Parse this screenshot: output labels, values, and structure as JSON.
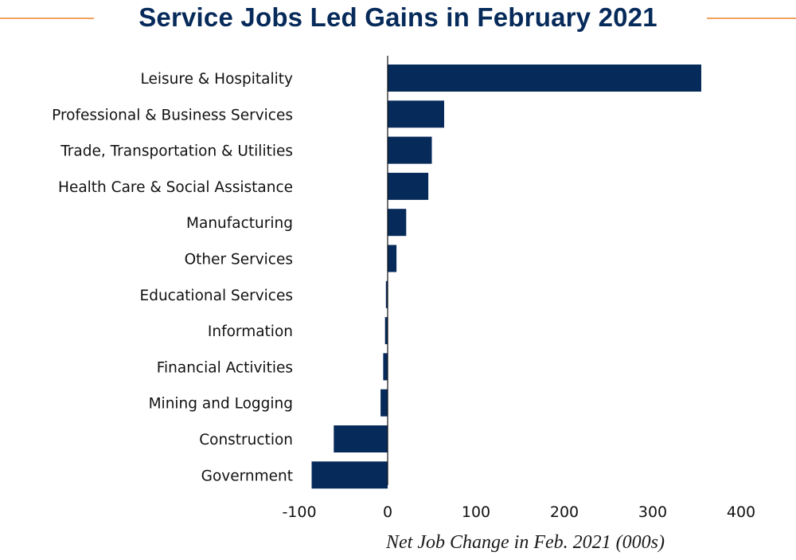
{
  "title": "Service Jobs Led Gains in February 2021",
  "colors": {
    "bar": "#062a5a",
    "accent_rule": "#f0a35e",
    "title": "#062a5a"
  },
  "chart_data": {
    "type": "bar",
    "orientation": "horizontal",
    "title": "Service Jobs Led Gains in February 2021",
    "xlabel": "Net Job Change in Feb. 2021 (000s)",
    "ylabel": "",
    "categories": [
      "Leisure & Hospitality",
      "Professional & Business Services",
      "Trade, Transportation & Utilities",
      "Health Care & Social Assistance",
      "Manufacturing",
      "Other Services",
      "Educational Services",
      "Information",
      "Financial Activities",
      "Mining and Logging",
      "Construction",
      "Government"
    ],
    "values": [
      355,
      64,
      50,
      46,
      21,
      10,
      -2,
      -3,
      -5,
      -8,
      -61,
      -86
    ],
    "xlim": [
      -100,
      400
    ],
    "xticks": [
      "-100",
      "0",
      "100",
      "200",
      "300",
      "400"
    ],
    "grid": false,
    "legend": "none"
  }
}
